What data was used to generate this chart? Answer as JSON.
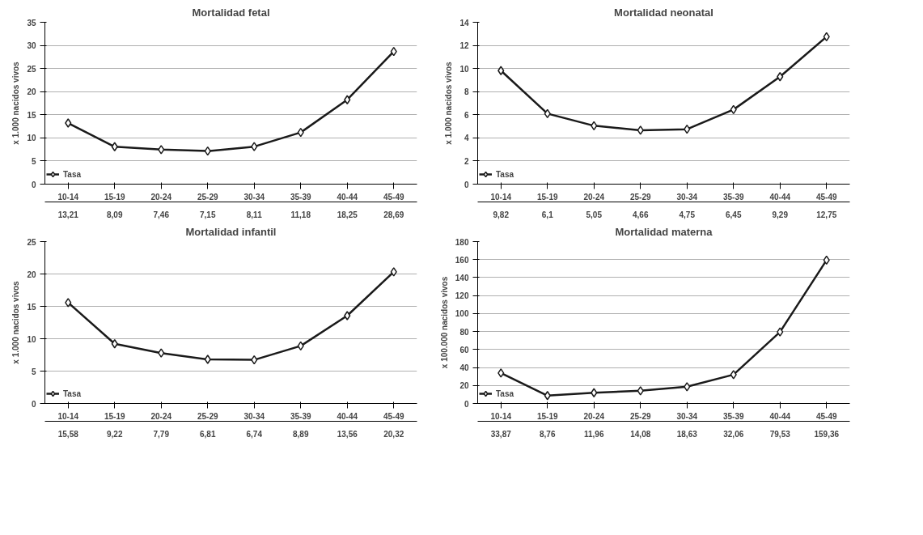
{
  "chart_data": [
    {
      "type": "line",
      "title": "Mortalidad fetal",
      "ylabel": "x 1.000 nacidos vivos",
      "categories": [
        "10-14",
        "15-19",
        "20-24",
        "25-29",
        "30-34",
        "35-39",
        "40-44",
        "45-49"
      ],
      "series": [
        {
          "name": "Tasa",
          "color": "#1a1a1a",
          "values": [
            13.21,
            8.09,
            7.46,
            7.15,
            8.11,
            11.18,
            18.25,
            28.69
          ],
          "value_labels": [
            "13,21",
            "8,09",
            "7,46",
            "7,15",
            "8,11",
            "11,18",
            "18,25",
            "28,69"
          ]
        }
      ],
      "ylim": [
        0,
        35
      ],
      "yticks": [
        0,
        5,
        10,
        15,
        20,
        25,
        30,
        35
      ],
      "grid": "y",
      "marker": "diamond",
      "data_labels": true,
      "legend": "bottom left"
    },
    {
      "type": "line",
      "title": "Mortalidad neonatal",
      "ylabel": "x 1.000 nacidos vivos",
      "categories": [
        "10-14",
        "15-19",
        "20-24",
        "25-29",
        "30-34",
        "35-39",
        "40-44",
        "45-49"
      ],
      "series": [
        {
          "name": "Tasa",
          "color": "#1a1a1a",
          "values": [
            9.82,
            6.1,
            5.05,
            4.66,
            4.75,
            6.45,
            9.29,
            12.75
          ],
          "value_labels": [
            "9,82",
            "6,1",
            "5,05",
            "4,66",
            "4,75",
            "6,45",
            "9,29",
            "12,75"
          ]
        }
      ],
      "ylim": [
        0,
        14
      ],
      "yticks": [
        0,
        2,
        4,
        6,
        8,
        10,
        12,
        14
      ],
      "grid": "y",
      "marker": "diamond",
      "data_labels": true,
      "legend": "bottom left"
    },
    {
      "type": "line",
      "title": "Mortalidad infantil",
      "ylabel": "x 1.000 nacidos vivos",
      "categories": [
        "10-14",
        "15-19",
        "20-24",
        "25-29",
        "30-34",
        "35-39",
        "40-44",
        "45-49"
      ],
      "series": [
        {
          "name": "Tasa",
          "color": "#1a1a1a",
          "values": [
            15.58,
            9.22,
            7.79,
            6.81,
            6.74,
            8.89,
            13.56,
            20.32
          ],
          "value_labels": [
            "15,58",
            "9,22",
            "7,79",
            "6,81",
            "6,74",
            "8,89",
            "13,56",
            "20,32"
          ]
        }
      ],
      "ylim": [
        0,
        25
      ],
      "yticks": [
        0,
        5,
        10,
        15,
        20,
        25
      ],
      "grid": "y",
      "marker": "diamond",
      "data_labels": true,
      "legend": "bottom left"
    },
    {
      "type": "line",
      "title": "Mortalidad materna",
      "ylabel": "x 100.000 nacidos vivos",
      "categories": [
        "10-14",
        "15-19",
        "20-24",
        "25-29",
        "30-34",
        "35-39",
        "40-44",
        "45-49"
      ],
      "series": [
        {
          "name": "Tasa",
          "color": "#1a1a1a",
          "values": [
            33.87,
            8.76,
            11.96,
            14.08,
            18.63,
            32.06,
            79.53,
            159.36
          ],
          "value_labels": [
            "33,87",
            "8,76",
            "11,96",
            "14,08",
            "18,63",
            "32,06",
            "79,53",
            "159,36"
          ]
        }
      ],
      "ylim": [
        0,
        180
      ],
      "yticks": [
        0,
        20,
        40,
        60,
        80,
        100,
        120,
        140,
        160,
        180
      ],
      "grid": "y",
      "marker": "diamond",
      "data_labels": true,
      "legend": "bottom left"
    }
  ]
}
